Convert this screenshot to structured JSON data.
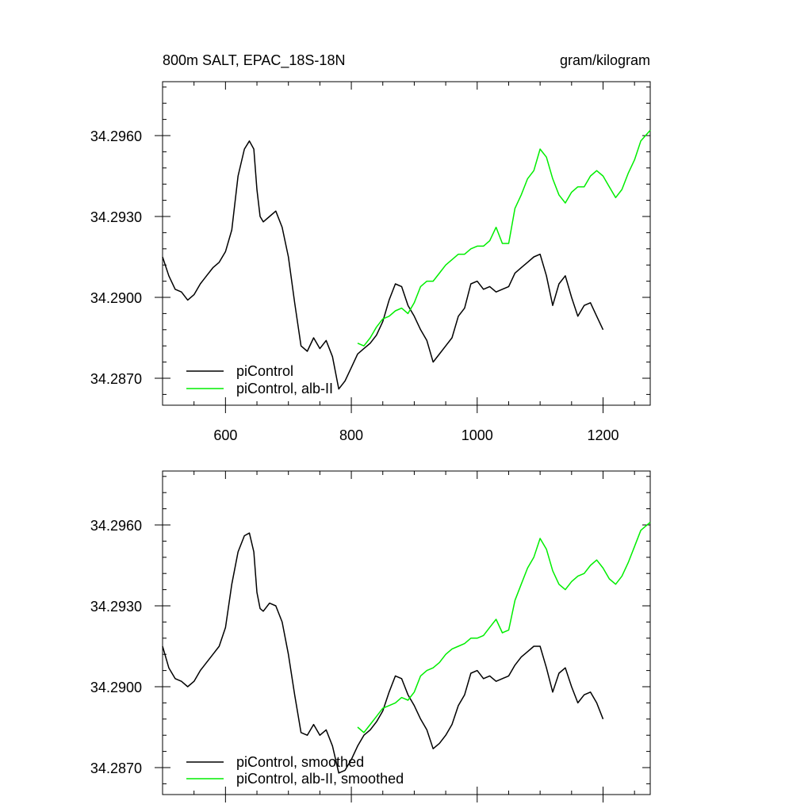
{
  "chart_data": [
    {
      "type": "line",
      "title_left": "800m SALT, EPAC_18S-18N",
      "title_right": "gram/kilogram",
      "xlim": [
        500,
        1275
      ],
      "ylim": [
        34.286,
        34.298
      ],
      "xticks": [
        600,
        800,
        1000,
        1200
      ],
      "xtick_labels": [
        "600",
        "800",
        "1000",
        "1200"
      ],
      "yticks": [
        34.287,
        34.29,
        34.293,
        34.296
      ],
      "ytick_labels": [
        "34.2870",
        "34.2900",
        "34.2930",
        "34.2960"
      ],
      "legend_placement": "bottom-left",
      "series": [
        {
          "name": "piControl",
          "color": "#000000",
          "x": [
            500,
            510,
            520,
            530,
            540,
            550,
            560,
            570,
            580,
            590,
            600,
            610,
            620,
            630,
            638,
            645,
            650,
            655,
            660,
            670,
            680,
            690,
            700,
            710,
            720,
            730,
            740,
            750,
            760,
            770,
            780,
            790,
            800,
            810,
            820,
            830,
            840,
            850,
            860,
            870,
            880,
            890,
            900,
            910,
            920,
            930,
            940,
            950,
            960,
            970,
            980,
            990,
            1000,
            1010,
            1020,
            1030,
            1040,
            1050,
            1060,
            1070,
            1080,
            1090,
            1100,
            1110,
            1120,
            1130,
            1140,
            1150,
            1160,
            1170,
            1180,
            1190,
            1200
          ],
          "y": [
            34.2915,
            34.2908,
            34.2903,
            34.2902,
            34.2899,
            34.2901,
            34.2905,
            34.2908,
            34.2911,
            34.2913,
            34.2917,
            34.2925,
            34.2945,
            34.2955,
            34.2958,
            34.2955,
            34.294,
            34.293,
            34.2928,
            34.293,
            34.2932,
            34.2926,
            34.2915,
            34.2898,
            34.2882,
            34.288,
            34.2885,
            34.2881,
            34.2884,
            34.2878,
            34.2866,
            34.2869,
            34.2874,
            34.2879,
            34.2881,
            34.2883,
            34.2886,
            34.2891,
            34.2899,
            34.2905,
            34.2904,
            34.2897,
            34.2893,
            34.2888,
            34.2884,
            34.2876,
            34.2879,
            34.2882,
            34.2885,
            34.2893,
            34.2896,
            34.2905,
            34.2906,
            34.2903,
            34.2904,
            34.2902,
            34.2903,
            34.2904,
            34.2909,
            34.2911,
            34.2913,
            34.2915,
            34.2916,
            34.2908,
            34.2897,
            34.2905,
            34.2908,
            34.29,
            34.2893,
            34.2897,
            34.2898,
            34.2893,
            34.2888
          ]
        },
        {
          "name": "piControl, alb-II",
          "color": "#00ee00",
          "x": [
            810,
            820,
            830,
            840,
            850,
            860,
            870,
            880,
            890,
            900,
            910,
            920,
            930,
            940,
            950,
            960,
            970,
            980,
            990,
            1000,
            1010,
            1020,
            1030,
            1040,
            1050,
            1060,
            1070,
            1080,
            1090,
            1100,
            1110,
            1120,
            1130,
            1140,
            1150,
            1160,
            1170,
            1180,
            1190,
            1200,
            1210,
            1220,
            1230,
            1240,
            1250,
            1260,
            1275
          ],
          "y": [
            34.2883,
            34.2882,
            34.2885,
            34.2889,
            34.2892,
            34.2893,
            34.2895,
            34.2896,
            34.2894,
            34.2898,
            34.2904,
            34.2906,
            34.2906,
            34.2909,
            34.2912,
            34.2914,
            34.2916,
            34.2916,
            34.2918,
            34.2919,
            34.2919,
            34.2921,
            34.2926,
            34.292,
            34.292,
            34.2933,
            34.2938,
            34.2944,
            34.2947,
            34.2955,
            34.2952,
            34.2944,
            34.2938,
            34.2935,
            34.2939,
            34.2941,
            34.2941,
            34.2945,
            34.2947,
            34.2945,
            34.2941,
            34.2937,
            34.294,
            34.2946,
            34.2951,
            34.2958,
            34.2962
          ]
        }
      ]
    },
    {
      "type": "line",
      "xlim": [
        500,
        1275
      ],
      "ylim": [
        34.286,
        34.298
      ],
      "xticks": [
        600,
        800,
        1000,
        1200
      ],
      "yticks": [
        34.287,
        34.29,
        34.293,
        34.296
      ],
      "ytick_labels": [
        "34.2870",
        "34.2900",
        "34.2930",
        "34.2960"
      ],
      "legend_placement": "bottom-left",
      "series": [
        {
          "name": "piControl, smoothed",
          "color": "#000000",
          "x": [
            500,
            510,
            520,
            530,
            540,
            550,
            560,
            570,
            580,
            590,
            600,
            610,
            620,
            630,
            638,
            645,
            650,
            655,
            660,
            670,
            680,
            690,
            700,
            710,
            720,
            730,
            740,
            750,
            760,
            770,
            780,
            790,
            800,
            810,
            820,
            830,
            840,
            850,
            860,
            870,
            880,
            890,
            900,
            910,
            920,
            930,
            940,
            950,
            960,
            970,
            980,
            990,
            1000,
            1010,
            1020,
            1030,
            1040,
            1050,
            1060,
            1070,
            1080,
            1090,
            1100,
            1110,
            1120,
            1130,
            1140,
            1150,
            1160,
            1170,
            1180,
            1190,
            1200
          ],
          "y": [
            34.2915,
            34.2907,
            34.2903,
            34.2902,
            34.29,
            34.2902,
            34.2906,
            34.2909,
            34.2912,
            34.2915,
            34.2922,
            34.2938,
            34.295,
            34.2956,
            34.2957,
            34.295,
            34.2935,
            34.2929,
            34.2928,
            34.2931,
            34.293,
            34.2924,
            34.2912,
            34.2897,
            34.2883,
            34.2882,
            34.2886,
            34.2882,
            34.2884,
            34.2878,
            34.2868,
            34.2869,
            34.2873,
            34.2878,
            34.2882,
            34.2884,
            34.2887,
            34.2891,
            34.2898,
            34.2904,
            34.2903,
            34.2897,
            34.2893,
            34.2888,
            34.2884,
            34.2877,
            34.2879,
            34.2882,
            34.2886,
            34.2893,
            34.2897,
            34.2905,
            34.2906,
            34.2903,
            34.2904,
            34.2902,
            34.2903,
            34.2904,
            34.2908,
            34.2911,
            34.2913,
            34.2915,
            34.2915,
            34.2907,
            34.2898,
            34.2905,
            34.2907,
            34.29,
            34.2894,
            34.2897,
            34.2898,
            34.2894,
            34.2888
          ]
        },
        {
          "name": "piControl, alb-II, smoothed",
          "color": "#00ee00",
          "x": [
            810,
            820,
            830,
            840,
            850,
            860,
            870,
            880,
            890,
            900,
            910,
            920,
            930,
            940,
            950,
            960,
            970,
            980,
            990,
            1000,
            1010,
            1020,
            1030,
            1040,
            1050,
            1060,
            1070,
            1080,
            1090,
            1100,
            1110,
            1120,
            1130,
            1140,
            1150,
            1160,
            1170,
            1180,
            1190,
            1200,
            1210,
            1220,
            1230,
            1240,
            1250,
            1260,
            1275
          ],
          "y": [
            34.2885,
            34.2883,
            34.2886,
            34.2889,
            34.2892,
            34.2893,
            34.2894,
            34.2896,
            34.2895,
            34.2898,
            34.2904,
            34.2906,
            34.2907,
            34.2909,
            34.2912,
            34.2914,
            34.2915,
            34.2916,
            34.2918,
            34.2918,
            34.2919,
            34.2922,
            34.2925,
            34.292,
            34.2921,
            34.2932,
            34.2938,
            34.2944,
            34.2948,
            34.2955,
            34.2951,
            34.2943,
            34.2938,
            34.2936,
            34.2939,
            34.2941,
            34.2942,
            34.2945,
            34.2947,
            34.2944,
            34.294,
            34.2938,
            34.2941,
            34.2946,
            34.2952,
            34.2958,
            34.2961
          ]
        }
      ]
    }
  ]
}
